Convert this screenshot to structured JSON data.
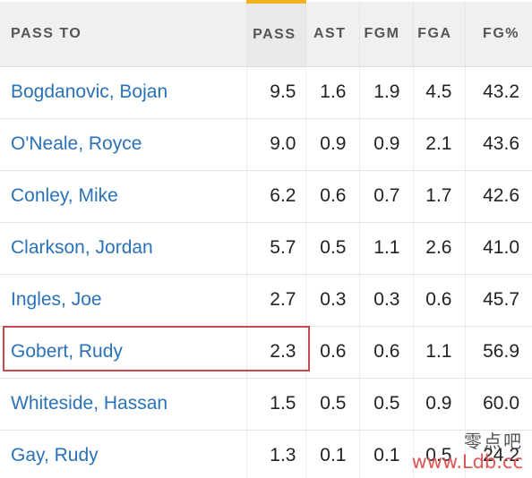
{
  "table": {
    "headers": {
      "pass_to": "PASS TO",
      "pass": "PASS",
      "ast": "AST",
      "fgm": "FGM",
      "fga": "FGA",
      "fg_pct": "FG%"
    },
    "sort_indicator_color": "#f2b01e",
    "link_color": "#2a72b8",
    "highlight_color": "#c9494e",
    "rows": [
      {
        "name": "Bogdanovic, Bojan",
        "pass": "9.5",
        "ast": "1.6",
        "fgm": "1.9",
        "fga": "4.5",
        "fg_pct": "43.2"
      },
      {
        "name": "O'Neale, Royce",
        "pass": "9.0",
        "ast": "0.9",
        "fgm": "0.9",
        "fga": "2.1",
        "fg_pct": "43.6"
      },
      {
        "name": "Conley, Mike",
        "pass": "6.2",
        "ast": "0.6",
        "fgm": "0.7",
        "fga": "1.7",
        "fg_pct": "42.6"
      },
      {
        "name": "Clarkson, Jordan",
        "pass": "5.7",
        "ast": "0.5",
        "fgm": "1.1",
        "fga": "2.6",
        "fg_pct": "41.0"
      },
      {
        "name": "Ingles, Joe",
        "pass": "2.7",
        "ast": "0.3",
        "fgm": "0.3",
        "fga": "0.6",
        "fg_pct": "45.7"
      },
      {
        "name": "Gobert, Rudy",
        "pass": "2.3",
        "ast": "0.6",
        "fgm": "0.6",
        "fga": "1.1",
        "fg_pct": "56.9"
      },
      {
        "name": "Whiteside, Hassan",
        "pass": "1.5",
        "ast": "0.5",
        "fgm": "0.5",
        "fga": "0.9",
        "fg_pct": "60.0"
      },
      {
        "name": "Gay, Rudy",
        "pass": "1.3",
        "ast": "0.1",
        "fgm": "0.1",
        "fga": "0.5",
        "fg_pct": "24.2"
      }
    ]
  },
  "watermark": {
    "chars": "零点吧",
    "url": "www.Ldb.cc"
  }
}
